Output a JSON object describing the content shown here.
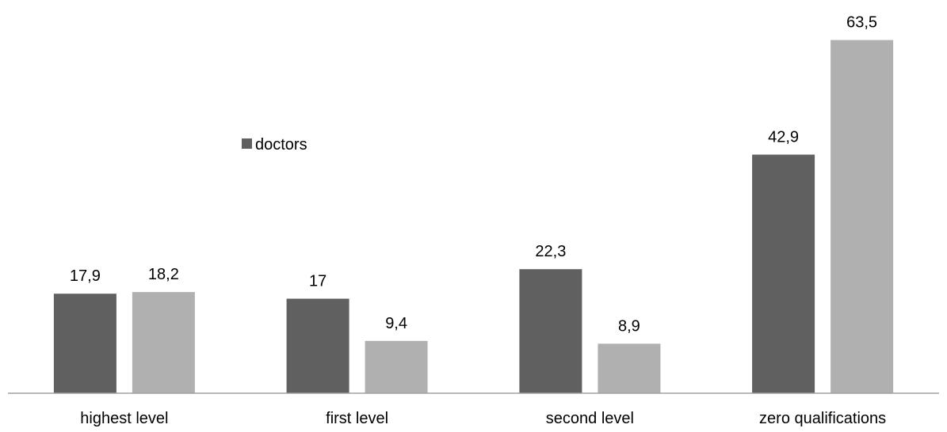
{
  "chart_data": {
    "type": "bar",
    "categories": [
      "highest level",
      "first level",
      "second level",
      "zero qualifications"
    ],
    "series": [
      {
        "name": "doctors",
        "values": [
          17.9,
          17,
          22.3,
          42.9
        ],
        "labels": [
          "17,9",
          "17",
          "22,3",
          "42,9"
        ],
        "color": "#606060"
      },
      {
        "values": [
          18.2,
          9.4,
          8.9,
          63.5
        ],
        "labels": [
          "18,2",
          "9,4",
          "8,9",
          "63,5"
        ],
        "color": "#b0b0b0"
      }
    ],
    "ylim": [
      0,
      67
    ],
    "grid": false,
    "legend": {
      "placement": "upper-left-inside",
      "entries": [
        "doctors"
      ]
    },
    "axis_color": "#a0a0a0"
  }
}
